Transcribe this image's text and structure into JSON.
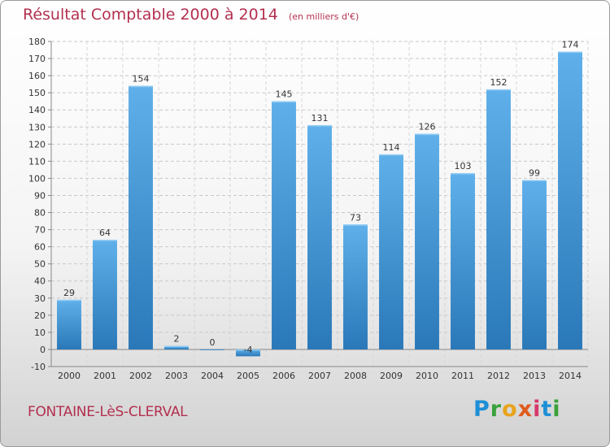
{
  "chart_data": {
    "type": "bar",
    "title": "Résultat Comptable 2000 à 2014",
    "subtitle": "(en milliers d'€)",
    "categories": [
      "2000",
      "2001",
      "2002",
      "2003",
      "2004",
      "2005",
      "2006",
      "2007",
      "2008",
      "2009",
      "2010",
      "2011",
      "2012",
      "2013",
      "2014"
    ],
    "values": [
      29,
      64,
      154,
      2,
      0,
      -4,
      145,
      131,
      73,
      114,
      126,
      103,
      152,
      99,
      174
    ],
    "ylim": [
      -10,
      180
    ],
    "yticks": [
      -10,
      0,
      10,
      20,
      30,
      40,
      50,
      60,
      70,
      80,
      90,
      100,
      110,
      120,
      130,
      140,
      150,
      160,
      170,
      180
    ],
    "grid": true,
    "bar_color": "#3d93d6"
  },
  "footer": {
    "city": "FONTAINE-LèS-CLERVAL",
    "logo_letters": [
      "P",
      "r",
      "o",
      "x",
      "i",
      "t",
      "i"
    ]
  }
}
